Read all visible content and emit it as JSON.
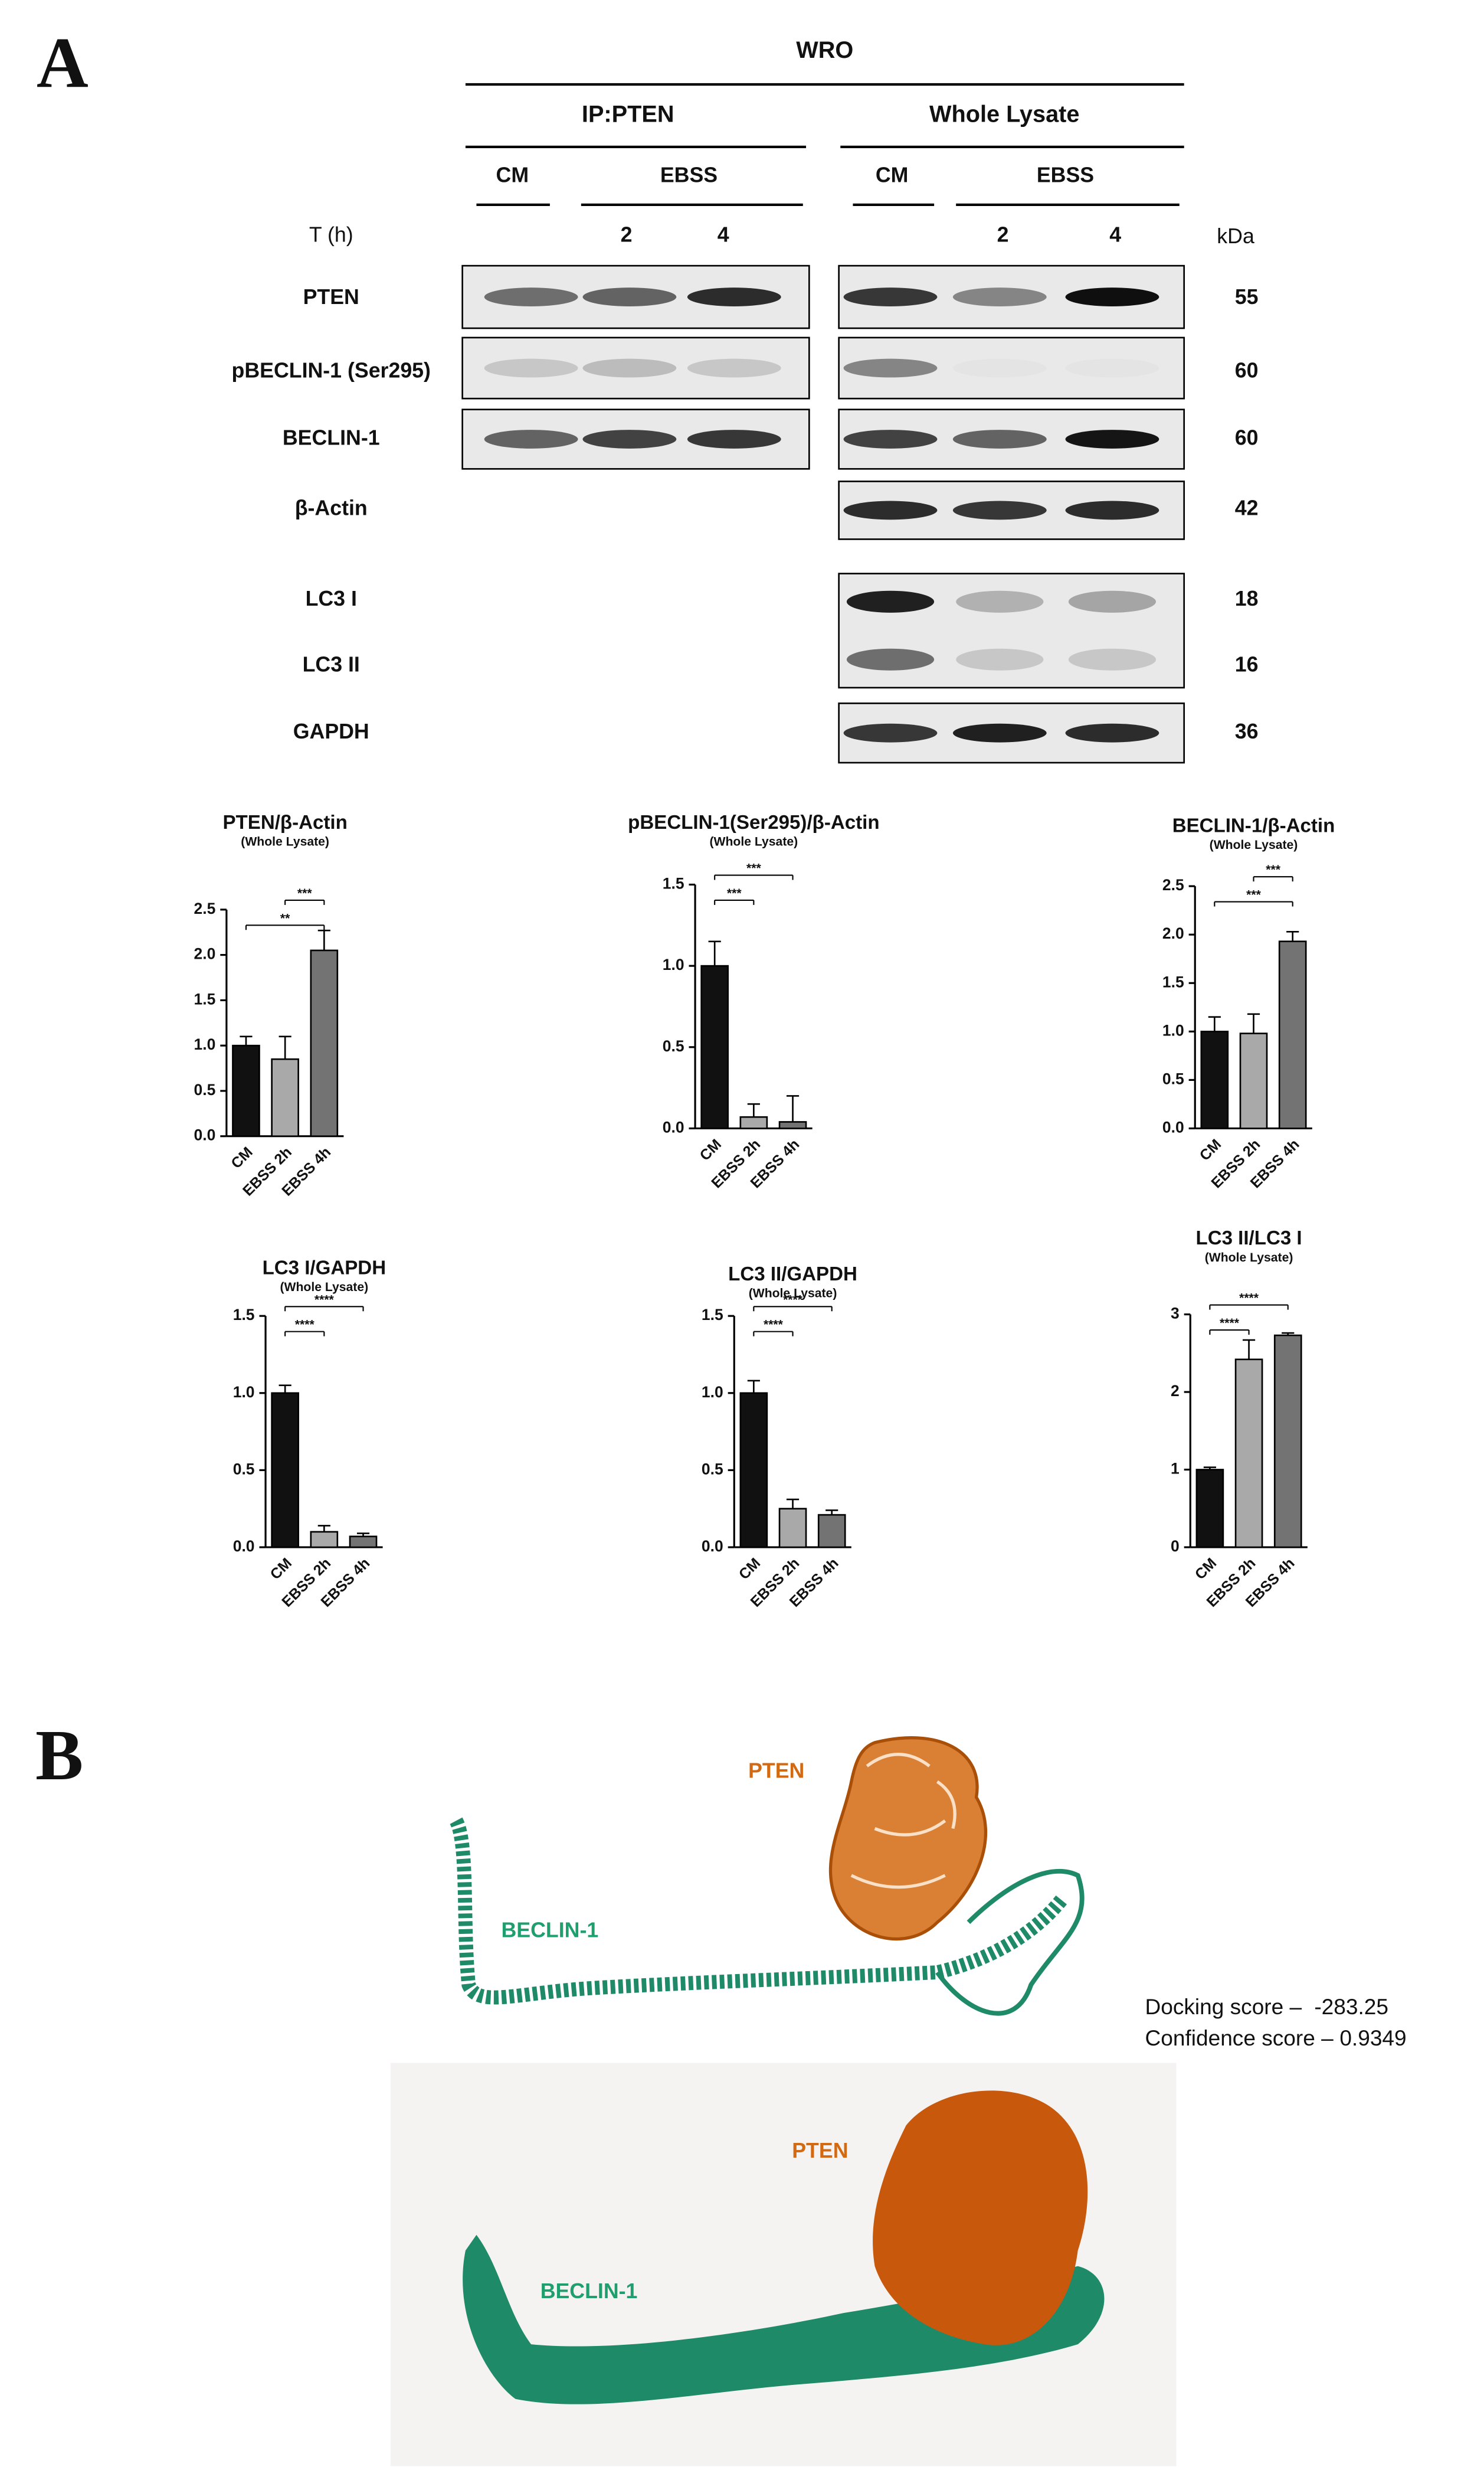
{
  "panel_a": {
    "label": "A",
    "cell_line": "WRO",
    "groups": [
      "IP:PTEN",
      "Whole Lysate"
    ],
    "conditions": [
      "CM",
      "EBSS",
      "CM",
      "EBSS"
    ],
    "time_label": "T (h)",
    "times": [
      2,
      4,
      2,
      4
    ],
    "kda_label": "kDa",
    "blots": [
      {
        "name": "PTEN",
        "kda": 55
      },
      {
        "name": "pBECLIN-1 (Ser295)",
        "kda": 60
      },
      {
        "name": "BECLIN-1",
        "kda": 60
      },
      {
        "name": "β-Actin",
        "kda": 42
      },
      {
        "name": "LC3 I",
        "kda": 18
      },
      {
        "name": "LC3 II",
        "kda": 16
      },
      {
        "name": "GAPDH",
        "kda": 36
      }
    ]
  },
  "chart_data": [
    {
      "type": "bar",
      "title": "PTEN/β-Actin",
      "subtitle": "(Whole Lysate)",
      "categories": [
        "CM",
        "EBSS 2h",
        "EBSS 4h"
      ],
      "values": [
        1.0,
        0.85,
        2.05
      ],
      "errors": [
        0.1,
        0.25,
        0.22
      ],
      "colors": [
        "#111111",
        "#a9a9a9",
        "#737373"
      ],
      "ylim": [
        0,
        2.5
      ],
      "yticks": [
        {
          "value": 0,
          "label": "0.0"
        },
        {
          "value": 0.5,
          "label": "0.5"
        },
        {
          "value": 1,
          "label": "1.0"
        },
        {
          "value": 1.5,
          "label": "1.5"
        },
        {
          "value": 2,
          "label": "2.0"
        },
        {
          "value": 2.5,
          "label": "2.5"
        }
      ],
      "significance": [
        {
          "label": "***",
          "between": [
            "EBSS 2h",
            "EBSS 4h"
          ]
        },
        {
          "label": "**",
          "between": [
            "CM",
            "EBSS 4h"
          ]
        }
      ]
    },
    {
      "type": "bar",
      "title": "pBECLIN-1(Ser295)/β-Actin",
      "subtitle": "(Whole Lysate)",
      "categories": [
        "CM",
        "EBSS 2h",
        "EBSS 4h"
      ],
      "values": [
        1.0,
        0.07,
        0.04
      ],
      "errors": [
        0.15,
        0.08,
        0.16
      ],
      "colors": [
        "#111111",
        "#a9a9a9",
        "#737373"
      ],
      "ylim": [
        0,
        1.5
      ],
      "yticks": [
        {
          "value": 0,
          "label": "0.0"
        },
        {
          "value": 0.5,
          "label": "0.5"
        },
        {
          "value": 1,
          "label": "1.0"
        },
        {
          "value": 1.5,
          "label": "1.5"
        }
      ],
      "significance": [
        {
          "label": "***",
          "between": [
            "CM",
            "EBSS 4h"
          ]
        },
        {
          "label": "***",
          "between": [
            "CM",
            "EBSS 2h"
          ]
        }
      ]
    },
    {
      "type": "bar",
      "title": "BECLIN-1/β-Actin",
      "subtitle": "(Whole Lysate)",
      "categories": [
        "CM",
        "EBSS 2h",
        "EBSS 4h"
      ],
      "values": [
        1.0,
        0.98,
        1.93
      ],
      "errors": [
        0.15,
        0.2,
        0.1
      ],
      "colors": [
        "#111111",
        "#a9a9a9",
        "#737373"
      ],
      "ylim": [
        0,
        2.5
      ],
      "yticks": [
        {
          "value": 0,
          "label": "0.0"
        },
        {
          "value": 0.5,
          "label": "0.5"
        },
        {
          "value": 1,
          "label": "1.0"
        },
        {
          "value": 1.5,
          "label": "1.5"
        },
        {
          "value": 2,
          "label": "2.0"
        },
        {
          "value": 2.5,
          "label": "2.5"
        }
      ],
      "significance": [
        {
          "label": "***",
          "between": [
            "EBSS 2h",
            "EBSS 4h"
          ]
        },
        {
          "label": "***",
          "between": [
            "CM",
            "EBSS 4h"
          ]
        }
      ]
    },
    {
      "type": "bar",
      "title": "LC3 I/GAPDH",
      "subtitle": "(Whole Lysate)",
      "categories": [
        "CM",
        "EBSS 2h",
        "EBSS 4h"
      ],
      "values": [
        1.0,
        0.1,
        0.07
      ],
      "errors": [
        0.05,
        0.04,
        0.02
      ],
      "colors": [
        "#111111",
        "#a9a9a9",
        "#737373"
      ],
      "ylim": [
        0,
        1.5
      ],
      "yticks": [
        {
          "value": 0,
          "label": "0.0"
        },
        {
          "value": 0.5,
          "label": "0.5"
        },
        {
          "value": 1,
          "label": "1.0"
        },
        {
          "value": 1.5,
          "label": "1.5"
        }
      ],
      "significance": [
        {
          "label": "****",
          "between": [
            "CM",
            "EBSS 4h"
          ]
        },
        {
          "label": "****",
          "between": [
            "CM",
            "EBSS 2h"
          ]
        }
      ]
    },
    {
      "type": "bar",
      "title": "LC3 II/GAPDH",
      "subtitle": "(Whole Lysate)",
      "categories": [
        "CM",
        "EBSS 2h",
        "EBSS 4h"
      ],
      "values": [
        1.0,
        0.25,
        0.21
      ],
      "errors": [
        0.08,
        0.06,
        0.03
      ],
      "colors": [
        "#111111",
        "#a9a9a9",
        "#737373"
      ],
      "ylim": [
        0,
        1.5
      ],
      "yticks": [
        {
          "value": 0,
          "label": "0.0"
        },
        {
          "value": 0.5,
          "label": "0.5"
        },
        {
          "value": 1,
          "label": "1.0"
        },
        {
          "value": 1.5,
          "label": "1.5"
        }
      ],
      "significance": [
        {
          "label": "****",
          "between": [
            "CM",
            "EBSS 4h"
          ]
        },
        {
          "label": "****",
          "between": [
            "CM",
            "EBSS 2h"
          ]
        }
      ]
    },
    {
      "type": "bar",
      "title": "LC3 II/LC3 I",
      "subtitle": "(Whole Lysate)",
      "categories": [
        "CM",
        "EBSS 2h",
        "EBSS 4h"
      ],
      "values": [
        1.0,
        2.42,
        2.73
      ],
      "errors": [
        0.03,
        0.25,
        0.03
      ],
      "colors": [
        "#111111",
        "#a9a9a9",
        "#737373"
      ],
      "ylim": [
        0,
        3
      ],
      "yticks": [
        0,
        1,
        2,
        3
      ],
      "significance": [
        {
          "label": "****",
          "between": [
            "CM",
            "EBSS 4h"
          ]
        },
        {
          "label": "****",
          "between": [
            "CM",
            "EBSS 2h"
          ]
        }
      ]
    }
  ],
  "panel_b": {
    "label": "B",
    "ribbon_labels": {
      "pten": "PTEN",
      "beclin": "BECLIN-1"
    },
    "surface_labels": {
      "pten": "PTEN",
      "beclin": "BECLIN-1"
    },
    "docking_score_label": "Docking score –",
    "docking_score": -283.25,
    "confidence_score_label": "Confidence score –",
    "confidence_score": 0.9349
  }
}
